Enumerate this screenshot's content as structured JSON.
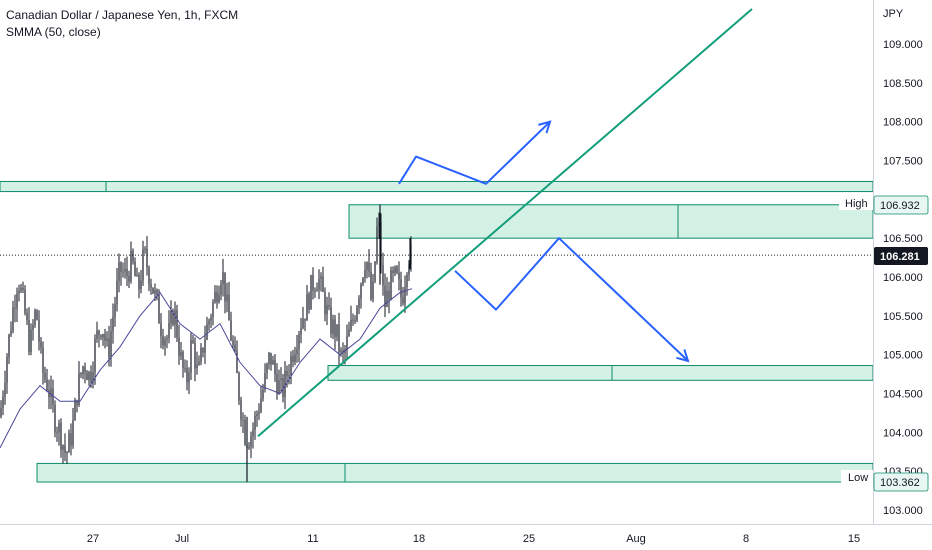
{
  "header": {
    "symbol_title": "Canadian Dollar / Japanese Yen, 1h, FXCM",
    "study_label": "SMMA (50, close)"
  },
  "currency_label": "JPY",
  "price_axis": {
    "ticks": [
      "109.000",
      "108.500",
      "108.000",
      "107.500",
      "106.500",
      "106.000",
      "105.500",
      "105.000",
      "104.500",
      "104.000",
      "103.500",
      "103.000"
    ],
    "tick_values": [
      109.0,
      108.5,
      108.0,
      107.5,
      106.5,
      106.0,
      105.5,
      105.0,
      104.5,
      104.0,
      103.5,
      103.0
    ]
  },
  "time_axis": {
    "labels": [
      "27",
      "Jul",
      "11",
      "18",
      "25",
      "Aug",
      "8",
      "15"
    ]
  },
  "tags": {
    "high_label": "High",
    "high_value": "106.932",
    "last_value": "106.281",
    "low_label": "Low",
    "low_value": "103.362"
  },
  "colors": {
    "candle": "#131722",
    "smma": "#4a4a9c",
    "zone_fill": "#cdeee0",
    "zone_stroke": "#0c8a6b",
    "trendline": "#129e7b",
    "projection": "#2962ff",
    "last_price_badge": "#131722"
  },
  "chart_data": {
    "type": "candlestick",
    "title": "Canadian Dollar / Japanese Yen, 1h, FXCM",
    "indicator": "SMMA (50, close)",
    "ylim": [
      102.85,
      109.45
    ],
    "y_unit": "JPY",
    "x_labels": [
      "27",
      "Jul",
      "11",
      "18",
      "25",
      "Aug",
      "8",
      "15"
    ],
    "high": 106.932,
    "low": 103.362,
    "last": 106.281,
    "price_path": [
      [
        0,
        104.2
      ],
      [
        6,
        104.9
      ],
      [
        12,
        105.5
      ],
      [
        18,
        106.0
      ],
      [
        24,
        105.6
      ],
      [
        30,
        105.1
      ],
      [
        36,
        105.6
      ],
      [
        42,
        104.8
      ],
      [
        48,
        104.6
      ],
      [
        54,
        104.2
      ],
      [
        60,
        104.0
      ],
      [
        66,
        103.7
      ],
      [
        72,
        104.0
      ],
      [
        78,
        104.6
      ],
      [
        84,
        104.9
      ],
      [
        90,
        104.7
      ],
      [
        96,
        105.2
      ],
      [
        102,
        105.4
      ],
      [
        108,
        105.0
      ],
      [
        114,
        105.6
      ],
      [
        120,
        106.1
      ],
      [
        126,
        106.0
      ],
      [
        132,
        106.2
      ],
      [
        138,
        105.8
      ],
      [
        144,
        106.3
      ],
      [
        150,
        106.0
      ],
      [
        156,
        105.7
      ],
      [
        162,
        105.3
      ],
      [
        168,
        105.2
      ],
      [
        174,
        105.6
      ],
      [
        180,
        105.0
      ],
      [
        186,
        104.6
      ],
      [
        192,
        105.2
      ],
      [
        198,
        104.7
      ],
      [
        204,
        105.2
      ],
      [
        210,
        105.5
      ],
      [
        216,
        105.8
      ],
      [
        222,
        106.1
      ],
      [
        228,
        105.5
      ],
      [
        234,
        105.0
      ],
      [
        240,
        104.4
      ],
      [
        246,
        103.9
      ],
      [
        252,
        104.0
      ],
      [
        258,
        104.3
      ],
      [
        264,
        104.6
      ],
      [
        270,
        105.0
      ],
      [
        276,
        104.7
      ],
      [
        282,
        104.5
      ],
      [
        288,
        104.8
      ],
      [
        294,
        105.1
      ],
      [
        300,
        105.4
      ],
      [
        306,
        105.6
      ],
      [
        312,
        105.9
      ],
      [
        318,
        106.0
      ],
      [
        324,
        105.7
      ],
      [
        330,
        105.4
      ],
      [
        336,
        105.3
      ],
      [
        342,
        104.9
      ],
      [
        348,
        105.2
      ],
      [
        354,
        105.5
      ],
      [
        360,
        105.9
      ],
      [
        366,
        106.3
      ],
      [
        372,
        105.6
      ],
      [
        378,
        106.8
      ],
      [
        384,
        105.6
      ],
      [
        390,
        105.9
      ],
      [
        396,
        106.0
      ],
      [
        402,
        105.7
      ],
      [
        408,
        106.3
      ],
      [
        412,
        106.28
      ]
    ],
    "smma_path": [
      [
        0,
        103.8
      ],
      [
        20,
        104.3
      ],
      [
        40,
        104.6
      ],
      [
        60,
        104.4
      ],
      [
        80,
        104.4
      ],
      [
        100,
        104.8
      ],
      [
        120,
        105.1
      ],
      [
        140,
        105.5
      ],
      [
        160,
        105.8
      ],
      [
        180,
        105.4
      ],
      [
        200,
        105.2
      ],
      [
        220,
        105.4
      ],
      [
        240,
        104.9
      ],
      [
        260,
        104.6
      ],
      [
        280,
        104.5
      ],
      [
        300,
        104.9
      ],
      [
        320,
        105.2
      ],
      [
        340,
        105.0
      ],
      [
        360,
        105.2
      ],
      [
        380,
        105.6
      ],
      [
        400,
        105.8
      ],
      [
        412,
        105.85
      ]
    ],
    "zones": [
      {
        "x1": 0,
        "x2": 873,
        "y_top": 107.23,
        "y_bottom": 107.1,
        "divider_x": 106
      },
      {
        "x1": 349,
        "x2": 873,
        "y_top": 106.93,
        "y_bottom": 106.5,
        "divider_x": 678
      },
      {
        "x1": 328,
        "x2": 873,
        "y_top": 104.86,
        "y_bottom": 104.67,
        "divider_x": 612
      },
      {
        "x1": 37,
        "x2": 873,
        "y_top": 103.6,
        "y_bottom": 103.36,
        "divider_x": 345
      }
    ],
    "trendline": {
      "from": [
        258,
        103.95
      ],
      "to": [
        752,
        109.45
      ]
    },
    "projection_up": [
      [
        399,
        107.2
      ],
      [
        416,
        107.55
      ],
      [
        486,
        107.2
      ],
      [
        550,
        108.0
      ]
    ],
    "projection_down": [
      [
        455,
        106.08
      ],
      [
        496,
        105.58
      ],
      [
        559,
        106.5
      ],
      [
        688,
        104.92
      ]
    ]
  }
}
